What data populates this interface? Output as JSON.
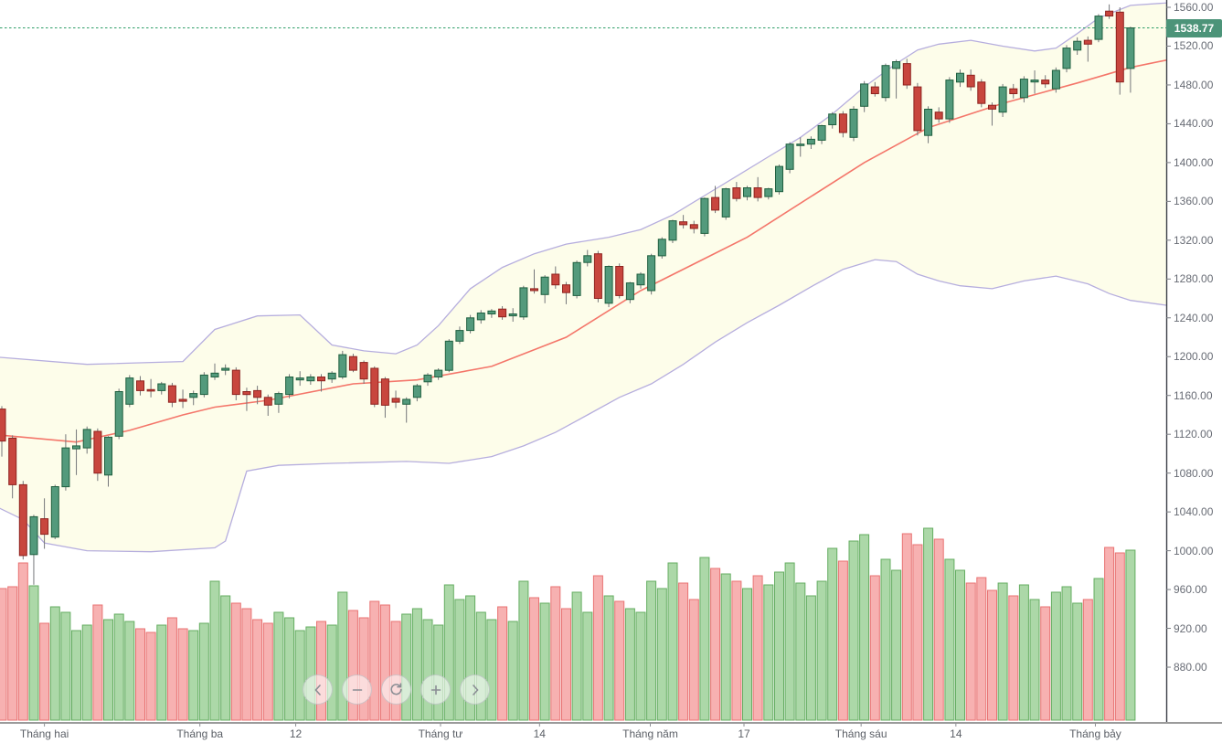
{
  "chart_data": {
    "type": "candlestick",
    "title": "",
    "legend_position": "none",
    "grid": false,
    "last_price": "1538.77",
    "last_price_value": 1538.77,
    "y_axis": {
      "labels": [
        "1560.00",
        "1520.00",
        "1480.00",
        "1440.00",
        "1400.00",
        "1360.00",
        "1320.00",
        "1280.00",
        "1240.00",
        "1200.00",
        "1160.00",
        "1120.00",
        "1080.00",
        "1040.00",
        "1000.00",
        "960.00",
        "920.00",
        "880.00"
      ],
      "range": [
        880,
        1560
      ],
      "side": "right"
    },
    "x_axis": {
      "labels": [
        {
          "text": "Tháng hai",
          "i": 4.0
        },
        {
          "text": "Tháng ba",
          "i": 18.6
        },
        {
          "text": "12",
          "i": 27.6
        },
        {
          "text": "Tháng tư",
          "i": 41.2
        },
        {
          "text": "14",
          "i": 50.5
        },
        {
          "text": "Tháng năm",
          "i": 60.9
        },
        {
          "text": "17",
          "i": 69.7
        },
        {
          "text": "Tháng sáu",
          "i": 80.7
        },
        {
          "text": "14",
          "i": 89.6
        },
        {
          "text": "Tháng bảy",
          "i": 102.7
        }
      ]
    },
    "candles": [
      [
        1146,
        1149,
        1097,
        1113
      ],
      [
        1116,
        1119,
        1054,
        1068
      ],
      [
        1068,
        1072,
        991,
        995
      ],
      [
        996,
        1037,
        965,
        1035
      ],
      [
        1033,
        1054,
        1002,
        1017
      ],
      [
        1014,
        1068,
        1012,
        1066
      ],
      [
        1066,
        1120,
        1062,
        1106
      ],
      [
        1105,
        1125,
        1078,
        1108
      ],
      [
        1106,
        1128,
        1100,
        1125
      ],
      [
        1123,
        1126,
        1072,
        1080
      ],
      [
        1078,
        1118,
        1066,
        1117
      ],
      [
        1118,
        1167,
        1115,
        1164
      ],
      [
        1151,
        1181,
        1148,
        1178
      ],
      [
        1175,
        1180,
        1160,
        1165
      ],
      [
        1166,
        1177,
        1158,
        1165
      ],
      [
        1165,
        1174,
        1161,
        1172
      ],
      [
        1170,
        1173,
        1148,
        1153
      ],
      [
        1156,
        1166,
        1147,
        1154
      ],
      [
        1158,
        1165,
        1150,
        1162
      ],
      [
        1161,
        1184,
        1158,
        1181
      ],
      [
        1179,
        1193,
        1176,
        1183
      ],
      [
        1186,
        1192,
        1181,
        1188
      ],
      [
        1186,
        1189,
        1155,
        1161
      ],
      [
        1164,
        1168,
        1144,
        1161
      ],
      [
        1165,
        1170,
        1151,
        1158
      ],
      [
        1158,
        1161,
        1139,
        1150
      ],
      [
        1151,
        1164,
        1142,
        1162
      ],
      [
        1161,
        1182,
        1157,
        1179
      ],
      [
        1176,
        1185,
        1170,
        1178
      ],
      [
        1175,
        1182,
        1171,
        1179
      ],
      [
        1179,
        1182,
        1164,
        1175
      ],
      [
        1177,
        1185,
        1173,
        1183
      ],
      [
        1179,
        1206,
        1177,
        1202
      ],
      [
        1200,
        1203,
        1184,
        1186
      ],
      [
        1194,
        1196,
        1172,
        1177
      ],
      [
        1188,
        1190,
        1148,
        1151
      ],
      [
        1177,
        1179,
        1137,
        1150
      ],
      [
        1157,
        1165,
        1147,
        1153
      ],
      [
        1151,
        1158,
        1132,
        1156
      ],
      [
        1158,
        1172,
        1154,
        1170
      ],
      [
        1174,
        1183,
        1170,
        1181
      ],
      [
        1179,
        1188,
        1176,
        1186
      ],
      [
        1186,
        1218,
        1184,
        1216
      ],
      [
        1216,
        1231,
        1213,
        1227
      ],
      [
        1227,
        1243,
        1224,
        1240
      ],
      [
        1238,
        1248,
        1234,
        1245
      ],
      [
        1244,
        1249,
        1240,
        1247
      ],
      [
        1249,
        1252,
        1238,
        1241
      ],
      [
        1242,
        1250,
        1236,
        1244
      ],
      [
        1241,
        1273,
        1238,
        1271
      ],
      [
        1270,
        1290,
        1265,
        1268
      ],
      [
        1264,
        1284,
        1255,
        1282
      ],
      [
        1285,
        1293,
        1270,
        1274
      ],
      [
        1274,
        1277,
        1254,
        1266
      ],
      [
        1263,
        1299,
        1260,
        1297
      ],
      [
        1297,
        1310,
        1293,
        1304
      ],
      [
        1306,
        1309,
        1256,
        1260
      ],
      [
        1255,
        1294,
        1251,
        1293
      ],
      [
        1293,
        1296,
        1260,
        1263
      ],
      [
        1259,
        1277,
        1255,
        1276
      ],
      [
        1274,
        1287,
        1270,
        1285
      ],
      [
        1268,
        1306,
        1264,
        1304
      ],
      [
        1304,
        1323,
        1301,
        1321
      ],
      [
        1320,
        1341,
        1317,
        1340
      ],
      [
        1339,
        1346,
        1332,
        1336
      ],
      [
        1336,
        1340,
        1327,
        1332
      ],
      [
        1327,
        1364,
        1324,
        1363
      ],
      [
        1364,
        1376,
        1348,
        1351
      ],
      [
        1344,
        1374,
        1341,
        1373
      ],
      [
        1374,
        1380,
        1360,
        1363
      ],
      [
        1365,
        1376,
        1361,
        1374
      ],
      [
        1374,
        1385,
        1360,
        1364
      ],
      [
        1365,
        1374,
        1362,
        1373
      ],
      [
        1370,
        1398,
        1367,
        1396
      ],
      [
        1393,
        1421,
        1389,
        1419
      ],
      [
        1418,
        1426,
        1406,
        1419
      ],
      [
        1419,
        1427,
        1414,
        1424
      ],
      [
        1423,
        1439,
        1419,
        1438
      ],
      [
        1439,
        1452,
        1435,
        1450
      ],
      [
        1450,
        1453,
        1426,
        1431
      ],
      [
        1426,
        1458,
        1422,
        1455
      ],
      [
        1458,
        1484,
        1452,
        1481
      ],
      [
        1478,
        1483,
        1468,
        1471
      ],
      [
        1467,
        1502,
        1463,
        1500
      ],
      [
        1497,
        1506,
        1466,
        1504
      ],
      [
        1502,
        1507,
        1476,
        1480
      ],
      [
        1478,
        1482,
        1428,
        1433
      ],
      [
        1428,
        1458,
        1420,
        1455
      ],
      [
        1452,
        1457,
        1441,
        1445
      ],
      [
        1445,
        1488,
        1441,
        1485
      ],
      [
        1483,
        1496,
        1478,
        1492
      ],
      [
        1490,
        1496,
        1474,
        1478
      ],
      [
        1483,
        1486,
        1457,
        1461
      ],
      [
        1459,
        1462,
        1438,
        1455
      ],
      [
        1452,
        1481,
        1447,
        1478
      ],
      [
        1476,
        1481,
        1466,
        1471
      ],
      [
        1467,
        1489,
        1462,
        1486
      ],
      [
        1483,
        1495,
        1471,
        1485
      ],
      [
        1485,
        1490,
        1477,
        1481
      ],
      [
        1476,
        1498,
        1472,
        1495
      ],
      [
        1497,
        1521,
        1493,
        1518
      ],
      [
        1516,
        1529,
        1511,
        1525
      ],
      [
        1526,
        1530,
        1504,
        1522
      ],
      [
        1527,
        1553,
        1524,
        1551
      ],
      [
        1556,
        1563,
        1548,
        1551
      ],
      [
        1555,
        1560,
        1470,
        1483
      ],
      [
        1497,
        1540,
        1472,
        1538.77
      ]
    ],
    "volumes": [
      144,
      146,
      172,
      147,
      106,
      124,
      118,
      98,
      104,
      126,
      110,
      116,
      108,
      100,
      96,
      104,
      112,
      100,
      98,
      106,
      152,
      136,
      128,
      122,
      110,
      106,
      118,
      112,
      98,
      102,
      108,
      104,
      140,
      120,
      112,
      130,
      126,
      108,
      116,
      122,
      110,
      104,
      148,
      132,
      136,
      118,
      110,
      124,
      108,
      152,
      134,
      128,
      146,
      122,
      140,
      118,
      158,
      136,
      130,
      122,
      118,
      152,
      144,
      172,
      150,
      132,
      178,
      166,
      160,
      152,
      144,
      158,
      148,
      162,
      172,
      150,
      136,
      152,
      188,
      174,
      196,
      203,
      158,
      176,
      164,
      204,
      192,
      210,
      198,
      176,
      164,
      150,
      156,
      142,
      150,
      136,
      148,
      132,
      124,
      140,
      146,
      128,
      132,
      155,
      189,
      183,
      186
    ],
    "bollinger": {
      "upper": [
        [
          -1,
          1200
        ],
        [
          8,
          1192
        ],
        [
          17,
          1195
        ],
        [
          20,
          1228
        ],
        [
          24,
          1242
        ],
        [
          28,
          1243
        ],
        [
          31,
          1212
        ],
        [
          34,
          1206
        ],
        [
          37,
          1203
        ],
        [
          39,
          1212
        ],
        [
          41,
          1232
        ],
        [
          44,
          1270
        ],
        [
          47,
          1292
        ],
        [
          50,
          1306
        ],
        [
          53,
          1316
        ],
        [
          57,
          1323
        ],
        [
          60,
          1331
        ],
        [
          63,
          1346
        ],
        [
          66,
          1366
        ],
        [
          69,
          1386
        ],
        [
          72,
          1406
        ],
        [
          75,
          1426
        ],
        [
          78,
          1450
        ],
        [
          81,
          1478
        ],
        [
          84,
          1502
        ],
        [
          86,
          1516
        ],
        [
          88,
          1522
        ],
        [
          91,
          1526
        ],
        [
          94,
          1520
        ],
        [
          97,
          1515
        ],
        [
          99,
          1518
        ],
        [
          101,
          1533
        ],
        [
          103,
          1549
        ],
        [
          106,
          1562
        ],
        [
          110,
          1565
        ]
      ],
      "mid": [
        [
          -1,
          1120
        ],
        [
          7,
          1112
        ],
        [
          12,
          1124
        ],
        [
          17,
          1140
        ],
        [
          20,
          1148
        ],
        [
          25,
          1155
        ],
        [
          33,
          1172
        ],
        [
          39,
          1176
        ],
        [
          46,
          1190
        ],
        [
          53,
          1220
        ],
        [
          60,
          1268
        ],
        [
          70,
          1323
        ],
        [
          81,
          1400
        ],
        [
          87,
          1436
        ],
        [
          94,
          1461
        ],
        [
          101,
          1482
        ],
        [
          106,
          1498
        ],
        [
          110,
          1507
        ]
      ],
      "lower": [
        [
          -1,
          1048
        ],
        [
          2,
          1032
        ],
        [
          4,
          1008
        ],
        [
          8,
          1000
        ],
        [
          14,
          999
        ],
        [
          20,
          1003
        ],
        [
          21,
          1010
        ],
        [
          23,
          1082
        ],
        [
          26,
          1088
        ],
        [
          31,
          1090
        ],
        [
          38,
          1092
        ],
        [
          42,
          1090
        ],
        [
          46,
          1097
        ],
        [
          49,
          1108
        ],
        [
          52,
          1122
        ],
        [
          55,
          1140
        ],
        [
          58,
          1158
        ],
        [
          61,
          1172
        ],
        [
          64,
          1192
        ],
        [
          67,
          1215
        ],
        [
          70,
          1235
        ],
        [
          73,
          1253
        ],
        [
          76,
          1272
        ],
        [
          79,
          1290
        ],
        [
          82,
          1300
        ],
        [
          84,
          1298
        ],
        [
          86,
          1285
        ],
        [
          88,
          1278
        ],
        [
          90,
          1273
        ],
        [
          93,
          1270
        ],
        [
          96,
          1278
        ],
        [
          99,
          1283
        ],
        [
          102,
          1275
        ],
        [
          104,
          1265
        ],
        [
          106,
          1258
        ],
        [
          110,
          1252
        ]
      ]
    },
    "nav_buttons": [
      {
        "name": "pan-left",
        "icon": "chevron-left-icon"
      },
      {
        "name": "zoom-out",
        "icon": "minus-icon"
      },
      {
        "name": "reset-view",
        "icon": "reset-icon"
      },
      {
        "name": "zoom-in",
        "icon": "plus-icon"
      },
      {
        "name": "pan-right",
        "icon": "chevron-right-icon"
      }
    ],
    "colors": {
      "up_fill": "#539a7c",
      "up_border": "#1f5f3f",
      "down_fill": "#c8463e",
      "down_border": "#8e221f",
      "wick": "#75777a",
      "vol_up_fill": "#a3d49f",
      "vol_up_border": "#64ad61",
      "vol_down_fill": "#f6a9a9",
      "vol_down_border": "#e87272",
      "band_fill": "#fdfdea",
      "band_line": "#b6aede",
      "sma_line": "#f4766a",
      "dotted_line": "#2f9e68",
      "badge_bg": "#4c9479",
      "badge_text": "#ffffff",
      "axis_line": "#3c4049",
      "baseline": "#9b9b9b",
      "nav_glyph": "#8a8d94"
    }
  }
}
